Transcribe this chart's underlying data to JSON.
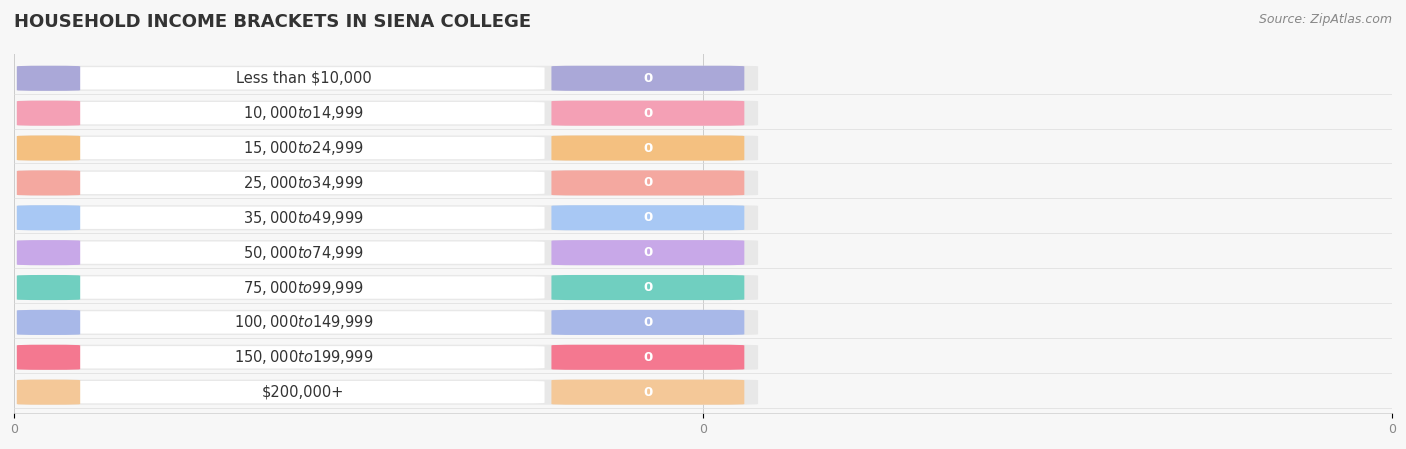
{
  "title": "HOUSEHOLD INCOME BRACKETS IN SIENA COLLEGE",
  "source": "Source: ZipAtlas.com",
  "categories": [
    "Less than $10,000",
    "$10,000 to $14,999",
    "$15,000 to $24,999",
    "$25,000 to $34,999",
    "$35,000 to $49,999",
    "$50,000 to $74,999",
    "$75,000 to $99,999",
    "$100,000 to $149,999",
    "$150,000 to $199,999",
    "$200,000+"
  ],
  "values": [
    0,
    0,
    0,
    0,
    0,
    0,
    0,
    0,
    0,
    0
  ],
  "bar_colors": [
    "#aaa8d8",
    "#f4a0b5",
    "#f4c080",
    "#f4a8a0",
    "#a8c8f4",
    "#c8a8e8",
    "#70cfc0",
    "#a8b8e8",
    "#f47890",
    "#f4c898"
  ],
  "bg_color": "#f7f7f7",
  "bar_bg_color": "#e8e8e8",
  "white_area_color": "#ffffff",
  "title_fontsize": 13,
  "label_fontsize": 10.5,
  "value_fontsize": 9.5,
  "source_fontsize": 9,
  "figsize": [
    14.06,
    4.49
  ],
  "dpi": 100
}
